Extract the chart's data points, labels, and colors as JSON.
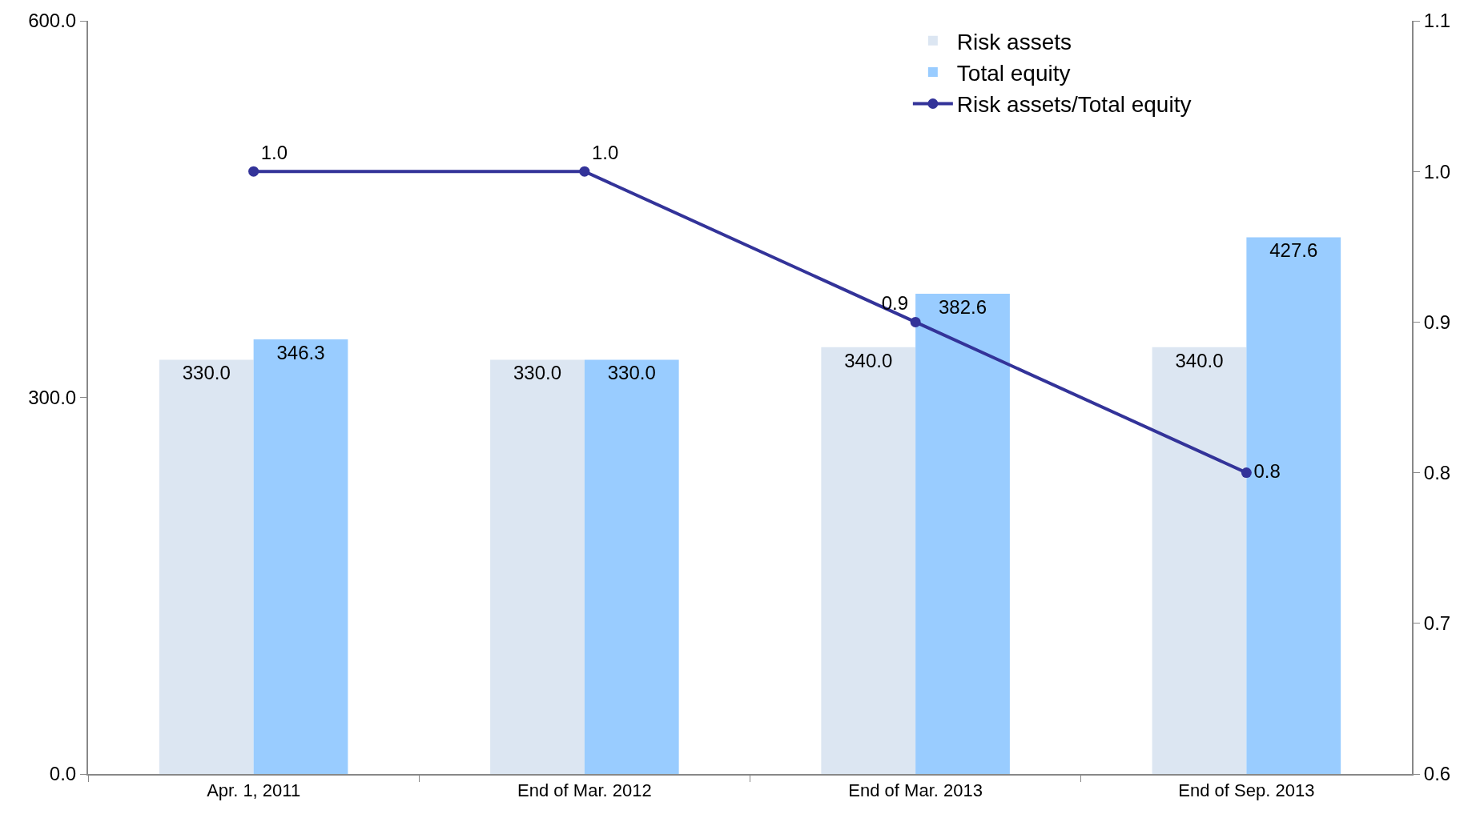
{
  "chart_data": {
    "type": "bar",
    "categories": [
      "Apr. 1, 2011",
      "End of Mar. 2012",
      "End of Mar. 2013",
      "End of Sep. 2013"
    ],
    "series": [
      {
        "name": "Risk assets",
        "color": "#dce6f2",
        "values": [
          330.0,
          330.0,
          340.0,
          340.0
        ],
        "value_labels": [
          "330.0",
          "330.0",
          "340.0",
          "340.0"
        ]
      },
      {
        "name": "Total equity",
        "color": "#99ccff",
        "values": [
          346.3,
          330.0,
          382.6,
          427.6
        ],
        "value_labels": [
          "346.3",
          "330.0",
          "382.6",
          "427.6"
        ]
      },
      {
        "name": "Risk assets/Total equity",
        "type": "line",
        "axis": "y2",
        "color": "#333399",
        "values": [
          1.0,
          1.0,
          0.9,
          0.8
        ],
        "value_labels": [
          "1.0",
          "1.0",
          "0.9",
          "0.8"
        ]
      }
    ],
    "ylim": [
      0,
      600
    ],
    "yticks": [
      {
        "value": 0,
        "label": "0.0"
      },
      {
        "value": 300,
        "label": "300.0"
      },
      {
        "value": 600,
        "label": "600.0"
      }
    ],
    "y2lim": [
      0.6,
      1.1
    ],
    "y2ticks": [
      {
        "value": 0.6,
        "label": "0.6"
      },
      {
        "value": 0.7,
        "label": "0.7"
      },
      {
        "value": 0.8,
        "label": "0.8"
      },
      {
        "value": 0.9,
        "label": "0.9"
      },
      {
        "value": 1.0,
        "label": "1.0"
      },
      {
        "value": 1.1,
        "label": "1.1"
      }
    ],
    "legend": "top right",
    "marker": "circle",
    "line_style": "solid"
  }
}
